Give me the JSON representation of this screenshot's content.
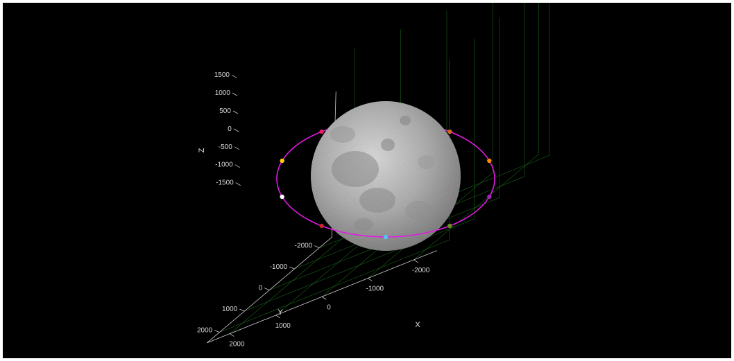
{
  "chart_data": {
    "type": "scatter",
    "title": "",
    "xlabel": "X",
    "ylabel": "Y",
    "zlabel": "Z",
    "xticks": [
      "-2000",
      "-1000",
      "0",
      "1000",
      "2000"
    ],
    "yticks": [
      "-2000",
      "-1000",
      "0",
      "1000",
      "2000"
    ],
    "zticks": [
      "1500",
      "1000",
      "500",
      "0",
      "-500",
      "-1000",
      "-1500"
    ],
    "xlim": [
      -2500,
      2500
    ],
    "ylim": [
      -2500,
      2500
    ],
    "zlim": [
      -1800,
      1800
    ],
    "grid": true,
    "legend": "none",
    "colors": {
      "background": "#000000",
      "grid": "#1f7a1f",
      "orbit": "#e619e6",
      "axis": "#cfcfcf"
    },
    "body": {
      "name": "moon-sphere",
      "radius": 1737
    },
    "orbit": {
      "radius": 2100,
      "color": "#e619e6"
    },
    "series": [
      {
        "values": [
          {
            "angle_deg": 0,
            "color": "#4fc3f7"
          },
          {
            "angle_deg": 36,
            "color": "#6b8e23"
          },
          {
            "angle_deg": 72,
            "color": "#9c27b0"
          },
          {
            "angle_deg": 108,
            "color": "#ff8c00"
          },
          {
            "angle_deg": 144,
            "color": "#d2691e"
          },
          {
            "angle_deg": 216,
            "color": "#e91e63"
          },
          {
            "angle_deg": 252,
            "color": "#ffd000"
          },
          {
            "angle_deg": 288,
            "color": "#ffffff"
          },
          {
            "angle_deg": 324,
            "color": "#c62828"
          }
        ]
      }
    ]
  }
}
